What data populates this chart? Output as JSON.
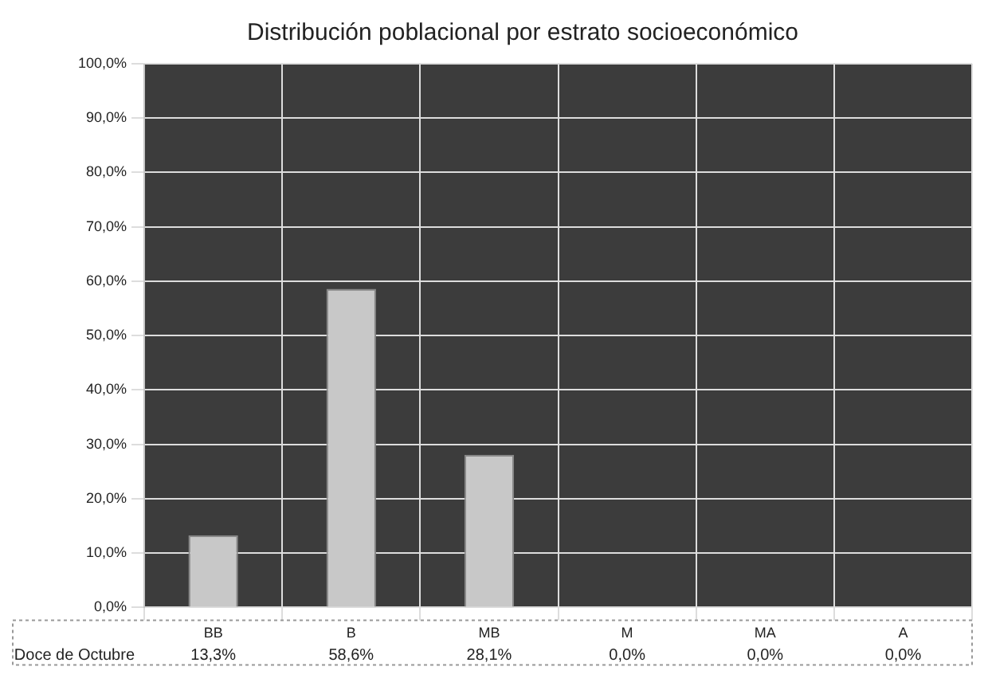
{
  "chart_data": {
    "type": "bar",
    "title": "Distribución poblacional por estrato socioeconómico",
    "categories": [
      "BB",
      "B",
      "MB",
      "M",
      "MA",
      "A"
    ],
    "series": [
      {
        "name": "Doce de Octubre",
        "color": "#c8c8c8",
        "values": [
          13.3,
          58.6,
          28.1,
          0,
          0,
          0
        ],
        "value_labels": [
          "13,3%",
          "58,6%",
          "28,1%",
          "0,0%",
          "0,0%",
          "0,0%"
        ]
      }
    ],
    "ylim": [
      0,
      100
    ],
    "yticks": [
      {
        "value": 0,
        "label": "0,0%"
      },
      {
        "value": 10,
        "label": "10,0%"
      },
      {
        "value": 20,
        "label": "20,0%"
      },
      {
        "value": 30,
        "label": "30,0%"
      },
      {
        "value": 40,
        "label": "40,0%"
      },
      {
        "value": 50,
        "label": "50,0%"
      },
      {
        "value": 60,
        "label": "60,0%"
      },
      {
        "value": 70,
        "label": "70,0%"
      },
      {
        "value": 80,
        "label": "80,0%"
      },
      {
        "value": 90,
        "label": "90,0%"
      },
      {
        "value": 100,
        "label": "100,0%"
      }
    ],
    "grid": true
  }
}
